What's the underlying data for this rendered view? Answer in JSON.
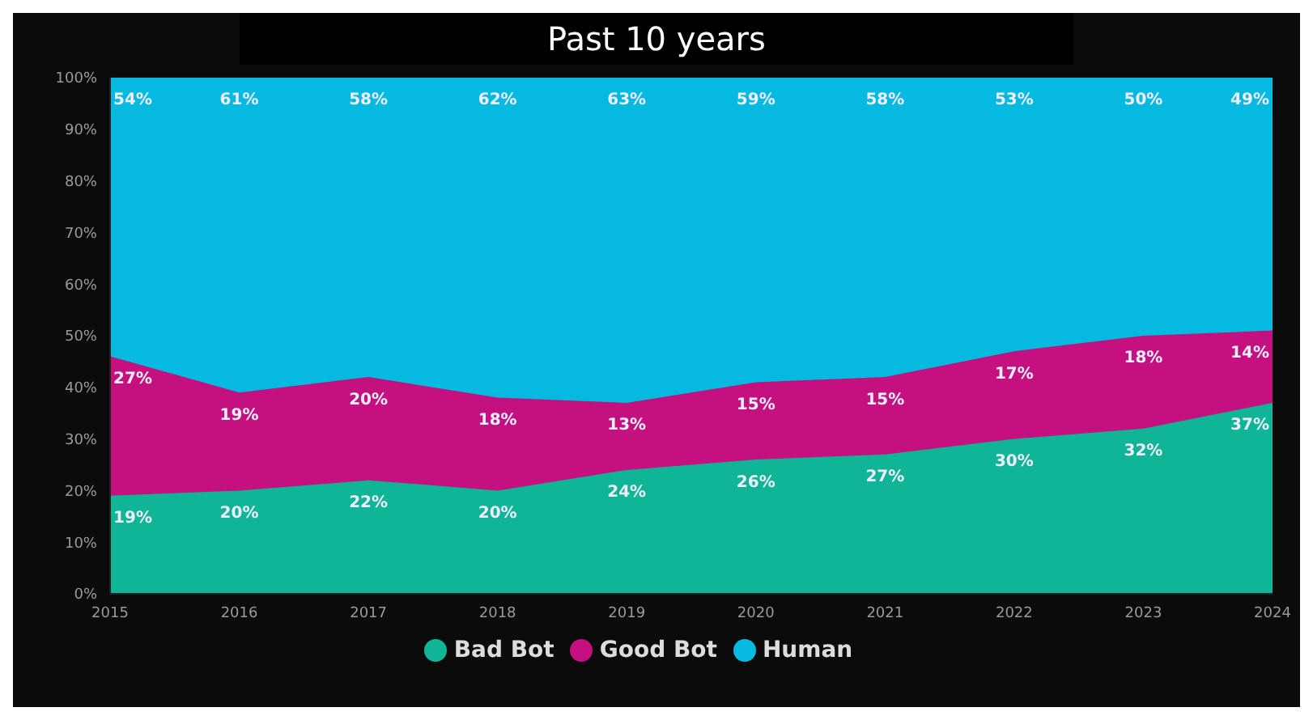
{
  "chart_data": {
    "type": "area",
    "title": "Past 10 years",
    "stacked": true,
    "legend": "bottom",
    "grid": false,
    "categories": [
      "2015",
      "2016",
      "2017",
      "2018",
      "2019",
      "2020",
      "2021",
      "2022",
      "2023",
      "2024"
    ],
    "ylim": [
      0,
      100
    ],
    "yticks": [
      {
        "value": 0,
        "label": "0%"
      },
      {
        "value": 10,
        "label": "10%"
      },
      {
        "value": 20,
        "label": "20%"
      },
      {
        "value": 30,
        "label": "30%"
      },
      {
        "value": 40,
        "label": "40%"
      },
      {
        "value": 50,
        "label": "50%"
      },
      {
        "value": 60,
        "label": "60%"
      },
      {
        "value": 70,
        "label": "70%"
      },
      {
        "value": 80,
        "label": "80%"
      },
      {
        "value": 90,
        "label": "90%"
      },
      {
        "value": 100,
        "label": "100%"
      }
    ],
    "series": [
      {
        "name": "Bad Bot",
        "color": "#0fb596",
        "values": [
          19,
          20,
          22,
          20,
          24,
          26,
          27,
          30,
          32,
          37
        ],
        "value_labels": [
          "19%",
          "20%",
          "22%",
          "20%",
          "24%",
          "26%",
          "27%",
          "30%",
          "32%",
          "37%"
        ]
      },
      {
        "name": "Good Bot",
        "color": "#c4117f",
        "values": [
          27,
          19,
          20,
          18,
          13,
          15,
          15,
          17,
          18,
          14
        ],
        "value_labels": [
          "27%",
          "19%",
          "20%",
          "18%",
          "13%",
          "15%",
          "15%",
          "17%",
          "18%",
          "14%"
        ]
      },
      {
        "name": "Human",
        "color": "#05b9e0",
        "values": [
          54,
          61,
          58,
          62,
          63,
          59,
          58,
          53,
          50,
          49
        ],
        "value_labels": [
          "54%",
          "61%",
          "58%",
          "62%",
          "63%",
          "59%",
          "58%",
          "53%",
          "50%",
          "49%"
        ]
      }
    ]
  }
}
